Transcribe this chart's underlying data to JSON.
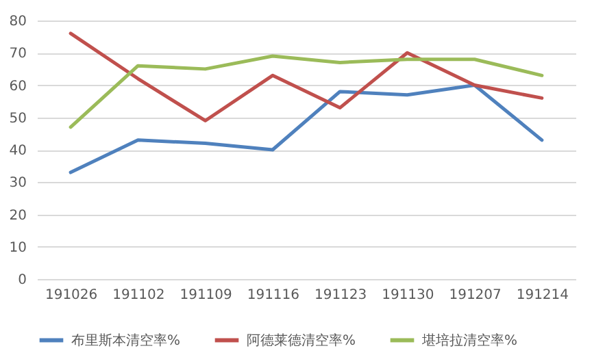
{
  "chart_data": {
    "type": "line",
    "categories": [
      "191026",
      "191102",
      "191109",
      "191116",
      "191123",
      "191130",
      "191207",
      "191214"
    ],
    "series": [
      {
        "name": "布里斯本清空率%",
        "color": "#4f81bd",
        "values": [
          33,
          43,
          42,
          40,
          58,
          57,
          60,
          43
        ]
      },
      {
        "name": "阿德莱德清空率%",
        "color": "#c0504d",
        "values": [
          76,
          62,
          49,
          63,
          53,
          70,
          60,
          56
        ]
      },
      {
        "name": "堪培拉清空率%",
        "color": "#9bbb59",
        "values": [
          47,
          66,
          65,
          69,
          67,
          68,
          68,
          63
        ]
      }
    ],
    "ylim": [
      0,
      80
    ],
    "yticks": [
      0,
      10,
      20,
      30,
      40,
      50,
      60,
      70,
      80
    ],
    "grid": "y",
    "legend": "bottom",
    "marker": "none",
    "line_style": "solid"
  }
}
